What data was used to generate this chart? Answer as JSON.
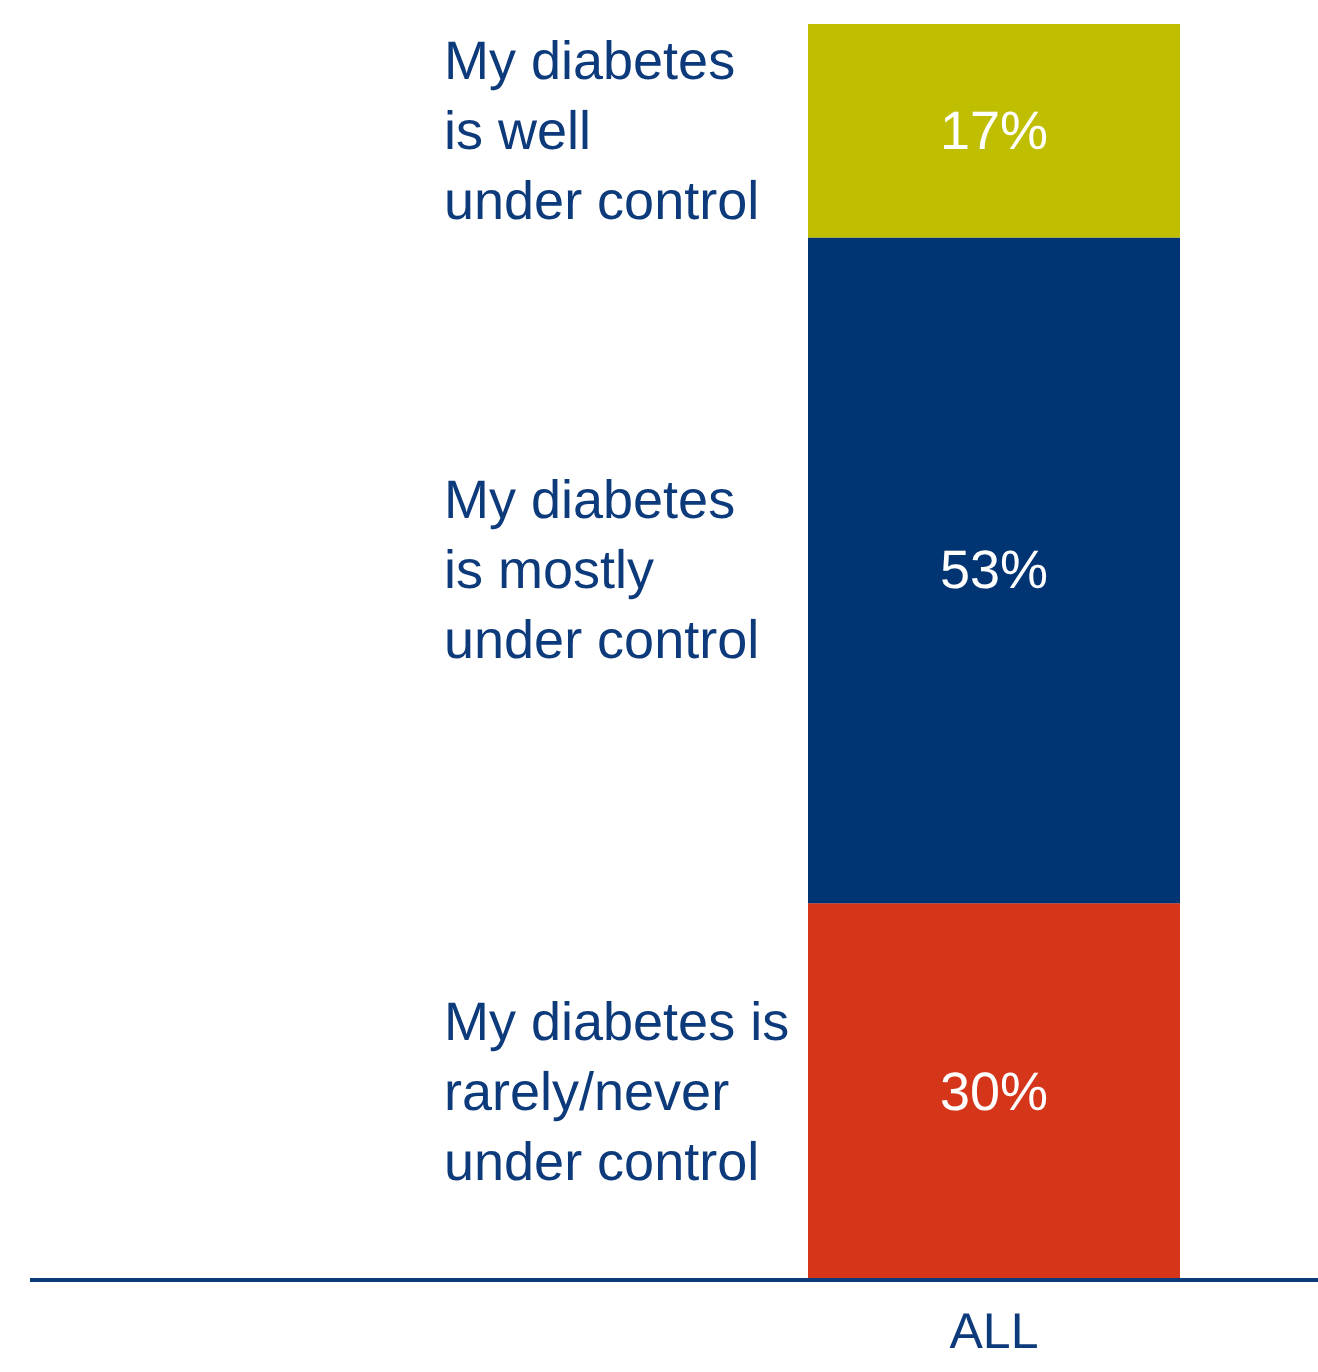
{
  "chart_data": {
    "type": "bar",
    "stacked": true,
    "categories": [
      "ALL"
    ],
    "series": [
      {
        "name": "My diabetes is\nrarely/never\nunder control",
        "color": "#d5361a",
        "values": [
          30
        ],
        "value_labels": [
          "30%"
        ]
      },
      {
        "name": "My diabetes\nis mostly\nunder control",
        "color": "#003472",
        "values": [
          53
        ],
        "value_labels": [
          "53%"
        ]
      },
      {
        "name": "My diabetes\nis well\nunder control",
        "color": "#bfbe00",
        "values": [
          17
        ],
        "value_labels": [
          "17%"
        ]
      }
    ]
  }
}
